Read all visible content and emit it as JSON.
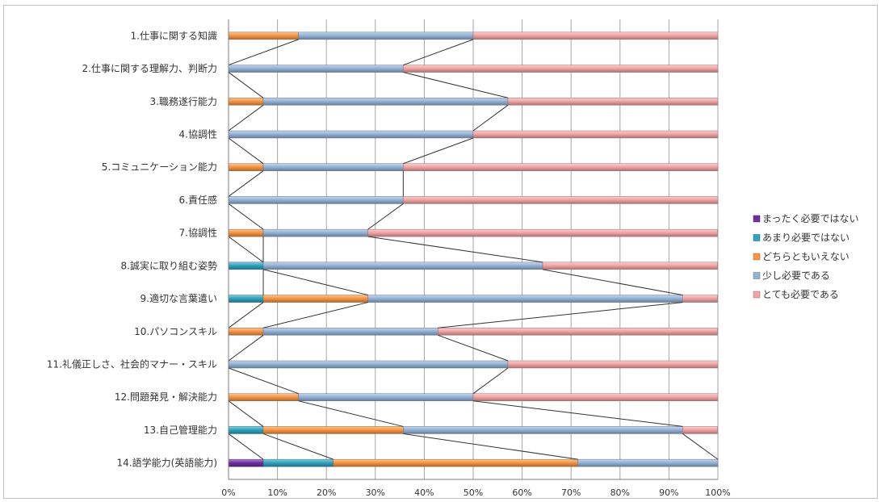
{
  "chart_data": {
    "type": "bar",
    "orientation": "horizontal",
    "stacked": "percent",
    "categories": [
      "1.仕事に関する知識",
      "2.仕事に関する理解力、判断力",
      "3.職務遂行能力",
      "4.協調性",
      "5.コミュニケーション能力",
      "6.責任感",
      "7.協調性",
      "8.誠実に取り組む姿勢",
      "9.適切な言葉遣い",
      "10.パソコンスキル",
      "11.礼儀正しさ、社会的マナー・スキル",
      "12.問題発見・解決能力",
      "13.自己管理能力",
      "14.語学能力(英語能力)"
    ],
    "series": [
      {
        "name": "まったく必要ではない",
        "color": "#7030a0",
        "values": [
          0,
          0,
          0,
          0,
          0,
          0,
          0,
          0,
          0,
          0,
          0,
          0,
          0,
          7.1
        ]
      },
      {
        "name": "あまり必要ではない",
        "color": "#31a3bf",
        "values": [
          0,
          0,
          0,
          0,
          0,
          0,
          0,
          7.1,
          7.1,
          0,
          0,
          0,
          7.1,
          14.3
        ]
      },
      {
        "name": "どちらともいえない",
        "color": "#f79646",
        "values": [
          14.3,
          0,
          7.1,
          0,
          7.1,
          0,
          7.1,
          0,
          21.4,
          7.1,
          0,
          14.3,
          28.6,
          50.0
        ]
      },
      {
        "name": "少し必要である",
        "color": "#95b3d7",
        "values": [
          35.7,
          35.7,
          50.0,
          50.0,
          28.6,
          35.7,
          21.4,
          57.1,
          64.3,
          35.7,
          57.1,
          35.7,
          57.1,
          28.6
        ]
      },
      {
        "name": "とても必要である",
        "color": "#f2a5a5",
        "values": [
          50.0,
          64.3,
          42.9,
          50.0,
          64.3,
          64.3,
          71.4,
          35.7,
          7.1,
          57.1,
          42.9,
          50.0,
          7.1,
          0
        ]
      }
    ],
    "xaxis": {
      "ticks": [
        "0%",
        "10%",
        "20%",
        "30%",
        "40%",
        "50%",
        "60%",
        "70%",
        "80%",
        "90%",
        "100%"
      ],
      "range": [
        0,
        100
      ]
    },
    "grid": true,
    "legend_position": "right",
    "series_lines": true
  }
}
